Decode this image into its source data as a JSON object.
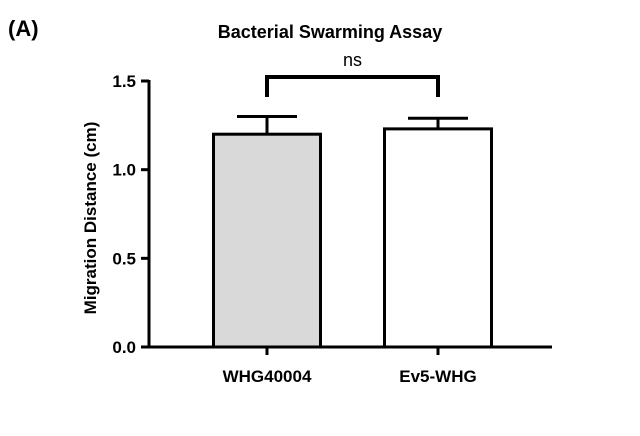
{
  "panel_label": "(A)",
  "chart_data": {
    "type": "bar",
    "title": "Bacterial Swarming Assay",
    "xlabel": "",
    "ylabel": "Migration Distance (cm)",
    "categories": [
      "WHG40004",
      "Ev5-WHG"
    ],
    "values": [
      1.2,
      1.23
    ],
    "errors": [
      0.1,
      0.06
    ],
    "bar_colors": [
      "#d9d9d9",
      "#ffffff"
    ],
    "ylim": [
      0,
      1.5
    ],
    "yticks": [
      "0.0",
      "0.5",
      "1.0",
      "1.5"
    ],
    "grid": false,
    "significance": {
      "from": "WHG40004",
      "to": "Ev5-WHG",
      "label": "ns"
    }
  }
}
